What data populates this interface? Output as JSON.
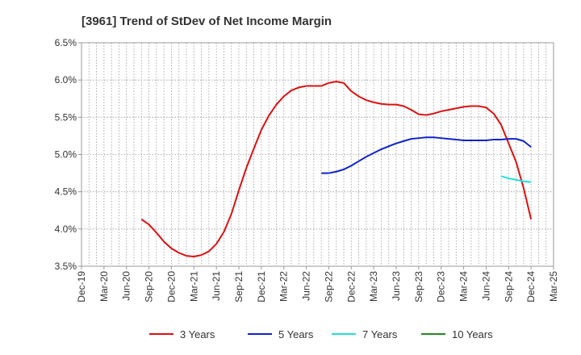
{
  "chart_data": {
    "type": "line",
    "title": "[3961]  Trend of StDev of Net Income Margin",
    "xlabel": "",
    "ylabel": "",
    "x_ticks": [
      "Dec-19",
      "Mar-20",
      "Jun-20",
      "Sep-20",
      "Dec-20",
      "Mar-21",
      "Jun-21",
      "Sep-21",
      "Dec-21",
      "Mar-22",
      "Jun-22",
      "Sep-22",
      "Dec-22",
      "Mar-23",
      "Jun-23",
      "Sep-23",
      "Dec-23",
      "Mar-24",
      "Jun-24",
      "Sep-24",
      "Dec-24",
      "Mar-25"
    ],
    "y_ticks": [
      "3.5%",
      "4.0%",
      "4.5%",
      "5.0%",
      "5.5%",
      "6.0%",
      "6.5%"
    ],
    "ylim": [
      3.5,
      6.5
    ],
    "grid": true,
    "legend_position": "bottom",
    "series": [
      {
        "name": "3 Years",
        "color": "#dd1111",
        "points": [
          [
            "2020-08",
            4.13
          ],
          [
            "2020-09",
            4.06
          ],
          [
            "2020-10",
            3.95
          ],
          [
            "2020-11",
            3.83
          ],
          [
            "2020-12",
            3.74
          ],
          [
            "2021-01",
            3.68
          ],
          [
            "2021-02",
            3.64
          ],
          [
            "2021-03",
            3.63
          ],
          [
            "2021-04",
            3.65
          ],
          [
            "2021-05",
            3.7
          ],
          [
            "2021-06",
            3.8
          ],
          [
            "2021-07",
            3.96
          ],
          [
            "2021-08",
            4.2
          ],
          [
            "2021-09",
            4.52
          ],
          [
            "2021-10",
            4.82
          ],
          [
            "2021-11",
            5.08
          ],
          [
            "2021-12",
            5.33
          ],
          [
            "2022-01",
            5.52
          ],
          [
            "2022-02",
            5.67
          ],
          [
            "2022-03",
            5.78
          ],
          [
            "2022-04",
            5.86
          ],
          [
            "2022-05",
            5.9
          ],
          [
            "2022-06",
            5.92
          ],
          [
            "2022-07",
            5.92
          ],
          [
            "2022-08",
            5.92
          ],
          [
            "2022-09",
            5.96
          ],
          [
            "2022-10",
            5.98
          ],
          [
            "2022-11",
            5.96
          ],
          [
            "2022-12",
            5.85
          ],
          [
            "2023-01",
            5.78
          ],
          [
            "2023-02",
            5.73
          ],
          [
            "2023-03",
            5.7
          ],
          [
            "2023-04",
            5.68
          ],
          [
            "2023-05",
            5.67
          ],
          [
            "2023-06",
            5.67
          ],
          [
            "2023-07",
            5.65
          ],
          [
            "2023-08",
            5.6
          ],
          [
            "2023-09",
            5.54
          ],
          [
            "2023-10",
            5.53
          ],
          [
            "2023-11",
            5.55
          ],
          [
            "2023-12",
            5.58
          ],
          [
            "2024-01",
            5.6
          ],
          [
            "2024-02",
            5.62
          ],
          [
            "2024-03",
            5.64
          ],
          [
            "2024-04",
            5.65
          ],
          [
            "2024-05",
            5.65
          ],
          [
            "2024-06",
            5.63
          ],
          [
            "2024-07",
            5.55
          ],
          [
            "2024-08",
            5.4
          ],
          [
            "2024-09",
            5.15
          ],
          [
            "2024-10",
            4.9
          ],
          [
            "2024-11",
            4.55
          ],
          [
            "2024-12",
            4.13
          ]
        ]
      },
      {
        "name": "5 Years",
        "color": "#1122cc",
        "points": [
          [
            "2022-08",
            4.75
          ],
          [
            "2022-09",
            4.75
          ],
          [
            "2022-10",
            4.77
          ],
          [
            "2022-11",
            4.8
          ],
          [
            "2022-12",
            4.85
          ],
          [
            "2023-01",
            4.91
          ],
          [
            "2023-02",
            4.97
          ],
          [
            "2023-03",
            5.02
          ],
          [
            "2023-04",
            5.07
          ],
          [
            "2023-05",
            5.11
          ],
          [
            "2023-06",
            5.15
          ],
          [
            "2023-07",
            5.18
          ],
          [
            "2023-08",
            5.21
          ],
          [
            "2023-09",
            5.22
          ],
          [
            "2023-10",
            5.23
          ],
          [
            "2023-11",
            5.23
          ],
          [
            "2023-12",
            5.22
          ],
          [
            "2024-01",
            5.21
          ],
          [
            "2024-02",
            5.2
          ],
          [
            "2024-03",
            5.19
          ],
          [
            "2024-04",
            5.19
          ],
          [
            "2024-05",
            5.19
          ],
          [
            "2024-06",
            5.19
          ],
          [
            "2024-07",
            5.2
          ],
          [
            "2024-08",
            5.2
          ],
          [
            "2024-09",
            5.21
          ],
          [
            "2024-10",
            5.21
          ],
          [
            "2024-11",
            5.18
          ],
          [
            "2024-12",
            5.1
          ]
        ]
      },
      {
        "name": "7 Years",
        "color": "#22dddd",
        "points": [
          [
            "2024-08",
            4.71
          ],
          [
            "2024-09",
            4.68
          ],
          [
            "2024-10",
            4.66
          ],
          [
            "2024-11",
            4.64
          ],
          [
            "2024-12",
            4.63
          ]
        ]
      },
      {
        "name": "10 Years",
        "color": "#228822",
        "points": []
      }
    ]
  }
}
